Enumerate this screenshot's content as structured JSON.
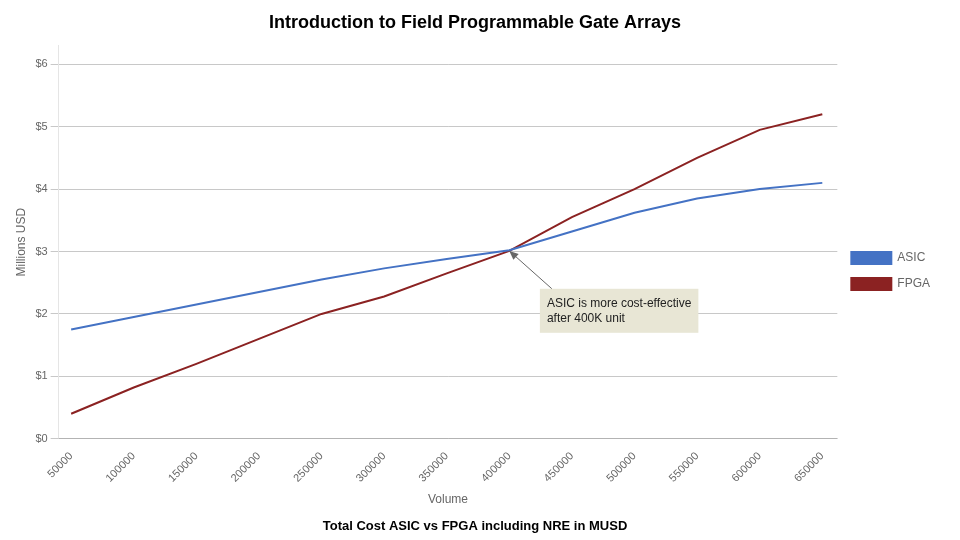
{
  "chart_data": {
    "type": "line",
    "title": "Introduction to Field Programmable Gate Arrays",
    "subtitle": "Total Cost ASIC vs FPGA including NRE in MUSD",
    "xlabel": "Volume",
    "ylabel": "Millions USD",
    "x": [
      50000,
      100000,
      150000,
      200000,
      250000,
      300000,
      350000,
      400000,
      450000,
      500000,
      550000,
      600000,
      650000
    ],
    "series": [
      {
        "name": "ASIC",
        "color": "#4472C4",
        "values": [
          1.75,
          1.95,
          2.15,
          2.35,
          2.55,
          2.73,
          2.88,
          3.02,
          3.32,
          3.62,
          3.85,
          4.0,
          4.1
        ]
      },
      {
        "name": "FPGA",
        "color": "#8B2222",
        "values": [
          0.4,
          0.82,
          1.2,
          1.6,
          2.0,
          2.28,
          2.65,
          3.01,
          3.55,
          4.0,
          4.5,
          4.95,
          5.2
        ]
      }
    ],
    "xlim": [
      40000,
      662000
    ],
    "xticks": [
      50000,
      100000,
      150000,
      200000,
      250000,
      300000,
      350000,
      400000,
      450000,
      500000,
      550000,
      600000,
      650000
    ],
    "ylim": [
      0,
      6.3
    ],
    "yticks": [
      {
        "value": 0,
        "label": "$0"
      },
      {
        "value": 1,
        "label": "$1"
      },
      {
        "value": 2,
        "label": "$2"
      },
      {
        "value": 3,
        "label": "$3"
      },
      {
        "value": 4,
        "label": "$4"
      },
      {
        "value": 5,
        "label": "$5"
      },
      {
        "value": 6,
        "label": "$6"
      }
    ],
    "grid": "y",
    "legend": "right",
    "annotations": [
      {
        "text": "ASIC is more cost-effective\nafter 400K unit",
        "x": 430000,
        "y": 2.05,
        "arrow_x": 400000,
        "arrow_y": 3.01
      }
    ]
  }
}
